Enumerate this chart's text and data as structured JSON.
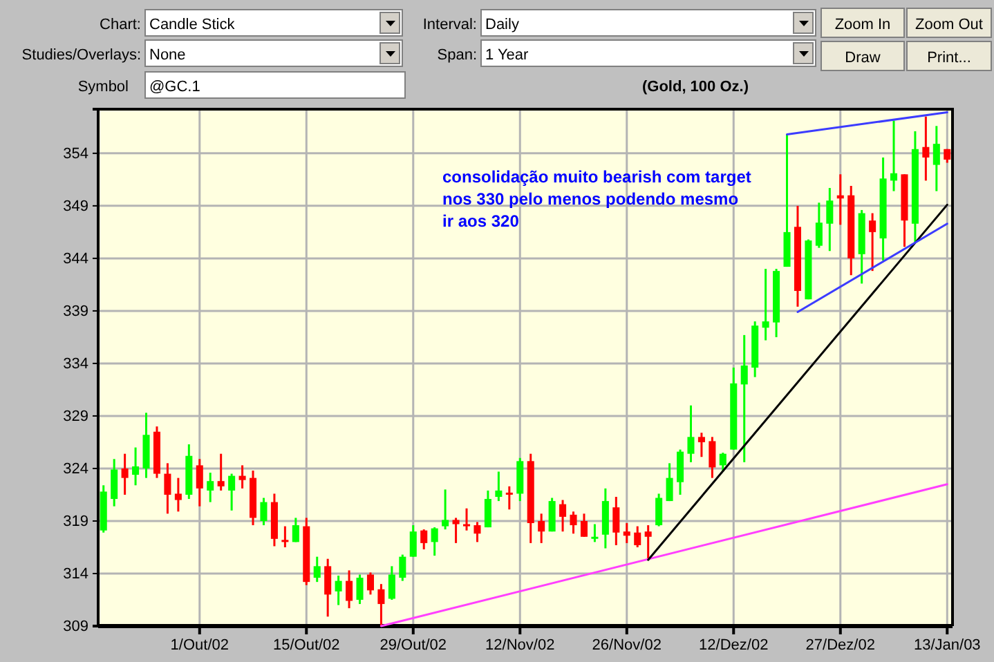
{
  "chart_data": {
    "type": "candlestick",
    "title": "(Gold, 100 Oz.)",
    "categories": [
      null,
      null,
      null,
      null,
      null,
      null,
      null,
      null,
      null,
      "1/Out/02",
      null,
      null,
      null,
      null,
      null,
      null,
      null,
      null,
      null,
      "15/Out/02",
      null,
      null,
      null,
      null,
      null,
      null,
      null,
      null,
      null,
      "29/Out/02",
      null,
      null,
      null,
      null,
      null,
      null,
      null,
      null,
      null,
      "12/Nov/02",
      null,
      null,
      null,
      null,
      null,
      null,
      null,
      null,
      null,
      "26/Nov/02",
      null,
      null,
      null,
      null,
      null,
      null,
      null,
      null,
      null,
      "12/Dez/02",
      null,
      null,
      null,
      null,
      null,
      null,
      null,
      null,
      null,
      "27/Dez/02",
      null,
      null,
      null,
      null,
      null,
      null,
      null,
      null,
      null,
      "13/Jan/03"
    ],
    "ohlc": [
      [
        318.1,
        322.4,
        317.9,
        321.8
      ],
      [
        321.1,
        324.9,
        320.4,
        323.9
      ],
      [
        324.0,
        325.4,
        321.5,
        323.1
      ],
      [
        323.4,
        326.0,
        322.4,
        324.2
      ],
      [
        324.0,
        329.3,
        323.1,
        327.2
      ],
      [
        327.5,
        328.0,
        323.1,
        323.5
      ],
      [
        323.5,
        324.5,
        319.7,
        321.5
      ],
      [
        321.6,
        323.1,
        319.9,
        321.0
      ],
      [
        321.5,
        326.3,
        321.1,
        325.2
      ],
      [
        324.3,
        324.9,
        320.4,
        322.1
      ],
      [
        321.9,
        323.6,
        320.8,
        322.8
      ],
      [
        322.8,
        325.4,
        321.9,
        322.3
      ],
      [
        321.9,
        323.5,
        320.0,
        323.3
      ],
      [
        323.3,
        324.3,
        322.1,
        322.9
      ],
      [
        323.1,
        323.8,
        318.6,
        319.3
      ],
      [
        319.0,
        321.2,
        318.6,
        320.8
      ],
      [
        320.8,
        321.6,
        316.6,
        317.3
      ],
      [
        317.2,
        318.5,
        316.5,
        317.0
      ],
      [
        317.0,
        319.3,
        317.0,
        318.6
      ],
      [
        318.5,
        319.3,
        312.9,
        313.2
      ],
      [
        313.6,
        315.6,
        313.2,
        314.7
      ],
      [
        314.7,
        315.4,
        309.9,
        312.0
      ],
      [
        312.3,
        313.8,
        311.0,
        313.3
      ],
      [
        313.3,
        314.3,
        310.7,
        311.4
      ],
      [
        311.5,
        313.9,
        311.1,
        313.6
      ],
      [
        313.9,
        314.1,
        312.0,
        312.4
      ],
      [
        312.5,
        313.0,
        309.0,
        311.1
      ],
      [
        311.6,
        314.7,
        311.5,
        313.9
      ],
      [
        313.6,
        315.8,
        313.3,
        315.6
      ],
      [
        315.6,
        318.6,
        315.6,
        318.0
      ],
      [
        318.1,
        318.2,
        316.3,
        316.9
      ],
      [
        317.0,
        318.4,
        315.7,
        318.3
      ],
      [
        318.5,
        322.0,
        318.2,
        319.1
      ],
      [
        319.1,
        319.3,
        316.9,
        318.7
      ],
      [
        318.7,
        320.2,
        318.1,
        318.5
      ],
      [
        318.6,
        318.9,
        317.0,
        317.8
      ],
      [
        318.4,
        321.9,
        318.4,
        321.1
      ],
      [
        321.3,
        323.7,
        320.9,
        321.9
      ],
      [
        321.7,
        322.3,
        320.1,
        321.6
      ],
      [
        321.6,
        325.0,
        320.9,
        324.7
      ],
      [
        324.7,
        325.4,
        316.9,
        318.8
      ],
      [
        319.0,
        319.7,
        316.9,
        318.0
      ],
      [
        318.0,
        321.2,
        318.0,
        320.9
      ],
      [
        320.6,
        321.0,
        318.0,
        319.4
      ],
      [
        319.6,
        319.9,
        317.8,
        318.6
      ],
      [
        319.0,
        319.7,
        317.5,
        317.5
      ],
      [
        317.4,
        318.7,
        317.0,
        317.5
      ],
      [
        317.7,
        322.1,
        316.4,
        320.9
      ],
      [
        320.3,
        321.3,
        316.7,
        317.9
      ],
      [
        318.0,
        318.8,
        316.9,
        317.6
      ],
      [
        317.9,
        318.5,
        316.5,
        316.7
      ],
      [
        318.0,
        318.6,
        315.3,
        317.5
      ],
      [
        318.6,
        321.6,
        318.5,
        321.2
      ],
      [
        320.9,
        324.5,
        320.9,
        323.1
      ],
      [
        322.7,
        325.8,
        321.5,
        325.6
      ],
      [
        325.4,
        330.0,
        324.6,
        327.0
      ],
      [
        327.0,
        327.4,
        325.1,
        326.5
      ],
      [
        326.6,
        327.0,
        323.1,
        324.1
      ],
      [
        324.3,
        325.5,
        323.7,
        325.4
      ],
      [
        325.8,
        333.6,
        325.8,
        332.1
      ],
      [
        332.0,
        336.7,
        324.6,
        333.8
      ],
      [
        333.6,
        338.0,
        332.7,
        337.6
      ],
      [
        337.4,
        343.0,
        336.2,
        338.0
      ],
      [
        337.9,
        343.0,
        336.5,
        342.8
      ],
      [
        343.2,
        355.8,
        343.2,
        346.5
      ],
      [
        347.0,
        349.0,
        339.4,
        340.9
      ],
      [
        340.1,
        345.8,
        340.1,
        345.7
      ],
      [
        345.2,
        349.3,
        345.0,
        347.4
      ],
      [
        347.3,
        350.7,
        344.7,
        349.5
      ],
      [
        350.0,
        352.0,
        347.2,
        349.7
      ],
      [
        350.0,
        350.9,
        342.4,
        344.0
      ],
      [
        344.4,
        348.6,
        341.6,
        348.3
      ],
      [
        347.6,
        348.3,
        342.8,
        346.5
      ],
      [
        345.9,
        353.6,
        343.8,
        351.6
      ],
      [
        351.4,
        357.1,
        350.4,
        352.1
      ],
      [
        352.0,
        352.0,
        345.1,
        347.6
      ],
      [
        347.3,
        356.1,
        345.5,
        354.4
      ],
      [
        354.6,
        357.5,
        351.4,
        353.6
      ],
      [
        352.9,
        356.6,
        350.4,
        354.9
      ],
      [
        354.4,
        354.4,
        353.1,
        353.4
      ]
    ],
    "colors": [
      "#00ff00",
      "#00ff00",
      "#ff0000",
      "#00ff00",
      "#00ff00",
      "#ff0000",
      "#ff0000",
      "#ff0000",
      "#00ff00",
      "#ff0000",
      "#00ff00",
      "#ff0000",
      "#00ff00",
      "#ff0000",
      "#ff0000",
      "#00ff00",
      "#ff0000",
      "#ff0000",
      "#00ff00",
      "#ff0000",
      "#00ff00",
      "#ff0000",
      "#00ff00",
      "#ff0000",
      "#00ff00",
      "#ff0000",
      "#ff0000",
      "#00ff00",
      "#00ff00",
      "#00ff00",
      "#ff0000",
      "#00ff00",
      "#00ff00",
      "#ff0000",
      "#ff0000",
      "#ff0000",
      "#00ff00",
      "#00ff00",
      "#ff0000",
      "#00ff00",
      "#ff0000",
      "#ff0000",
      "#00ff00",
      "#ff0000",
      "#ff0000",
      "#ff0000",
      "#00ff00",
      "#00ff00",
      "#ff0000",
      "#ff0000",
      "#ff0000",
      "#ff0000",
      "#00ff00",
      "#00ff00",
      "#00ff00",
      "#00ff00",
      "#ff0000",
      "#ff0000",
      "#00ff00",
      "#00ff00",
      "#00ff00",
      "#00ff00",
      "#00ff00",
      "#00ff00",
      "#00ff00",
      "#ff0000",
      "#00ff00",
      "#00ff00",
      "#00ff00",
      "#ff0000",
      "#ff0000",
      "#00ff00",
      "#ff0000",
      "#00ff00",
      "#00ff00",
      "#ff0000",
      "#00ff00",
      "#ff0000",
      "#00ff00",
      "#ff0000"
    ],
    "series": [
      {
        "type": "line",
        "color": "#ff40ff",
        "values": [
          null,
          null,
          null,
          null,
          null,
          null,
          null,
          null,
          null,
          null,
          null,
          null,
          null,
          null,
          null,
          null,
          null,
          null,
          null,
          null,
          null,
          null,
          null,
          null,
          null,
          null,
          309.0,
          null,
          null,
          null,
          null,
          null,
          null,
          null,
          null,
          null,
          null,
          null,
          null,
          null,
          null,
          null,
          null,
          null,
          null,
          null,
          null,
          null,
          null,
          null,
          null,
          null,
          null,
          null,
          null,
          null,
          null,
          null,
          null,
          null,
          null,
          null,
          null,
          null,
          null,
          null,
          null,
          null,
          null,
          null,
          null,
          null,
          null,
          null,
          null,
          null,
          null,
          null,
          null,
          322.5
        ]
      },
      {
        "type": "line",
        "color": "#000000",
        "values": [
          null,
          null,
          null,
          null,
          null,
          null,
          null,
          null,
          null,
          null,
          null,
          null,
          null,
          null,
          null,
          null,
          null,
          null,
          null,
          null,
          null,
          null,
          null,
          null,
          null,
          null,
          null,
          null,
          null,
          null,
          null,
          null,
          null,
          null,
          null,
          null,
          null,
          null,
          null,
          null,
          null,
          null,
          null,
          null,
          null,
          null,
          null,
          null,
          null,
          null,
          null,
          315.3,
          null,
          null,
          null,
          null,
          null,
          null,
          null,
          null,
          null,
          null,
          null,
          null,
          null,
          null,
          null,
          null,
          null,
          null,
          null,
          null,
          null,
          null,
          null,
          null,
          null,
          null,
          null,
          349.1
        ]
      },
      {
        "type": "line",
        "color": "#3c3cff",
        "values": [
          null,
          null,
          null,
          null,
          null,
          null,
          null,
          null,
          null,
          null,
          null,
          null,
          null,
          null,
          null,
          null,
          null,
          null,
          null,
          null,
          null,
          null,
          null,
          null,
          null,
          null,
          null,
          null,
          null,
          null,
          null,
          null,
          null,
          null,
          null,
          null,
          null,
          null,
          null,
          null,
          null,
          null,
          null,
          null,
          null,
          null,
          null,
          null,
          null,
          null,
          null,
          null,
          null,
          null,
          null,
          null,
          null,
          null,
          null,
          null,
          null,
          null,
          null,
          null,
          355.8,
          null,
          null,
          null,
          null,
          null,
          null,
          null,
          null,
          null,
          null,
          null,
          null,
          null,
          null,
          357.9
        ]
      },
      {
        "type": "line",
        "color": "#3c3cff",
        "values": [
          null,
          null,
          null,
          null,
          null,
          null,
          null,
          null,
          null,
          null,
          null,
          null,
          null,
          null,
          null,
          null,
          null,
          null,
          null,
          null,
          null,
          null,
          null,
          null,
          null,
          null,
          null,
          null,
          null,
          null,
          null,
          null,
          null,
          null,
          null,
          null,
          null,
          null,
          null,
          null,
          null,
          null,
          null,
          null,
          null,
          null,
          null,
          null,
          null,
          null,
          null,
          null,
          null,
          null,
          null,
          null,
          null,
          null,
          null,
          null,
          null,
          null,
          null,
          null,
          null,
          338.9,
          null,
          null,
          null,
          null,
          null,
          null,
          null,
          null,
          null,
          null,
          null,
          null,
          null,
          347.3
        ]
      }
    ],
    "ylim": [
      309,
      358.2
    ],
    "yticks": [
      309,
      314,
      319,
      324,
      329,
      334,
      339,
      344,
      349,
      354
    ],
    "grid": true,
    "annotations": [
      "consolidação muito bearish com target nos 330 pelo menos podendo mesmo ir aos 320",
      "Chart:",
      "Candle Stick",
      "Interval:",
      "Daily",
      "Zoom In",
      "Zoom Out",
      "Studies/Overlays:",
      "None",
      "Span:",
      "1 Year",
      "Draw",
      "Print...",
      "Symbol",
      "@GC.1"
    ]
  }
}
